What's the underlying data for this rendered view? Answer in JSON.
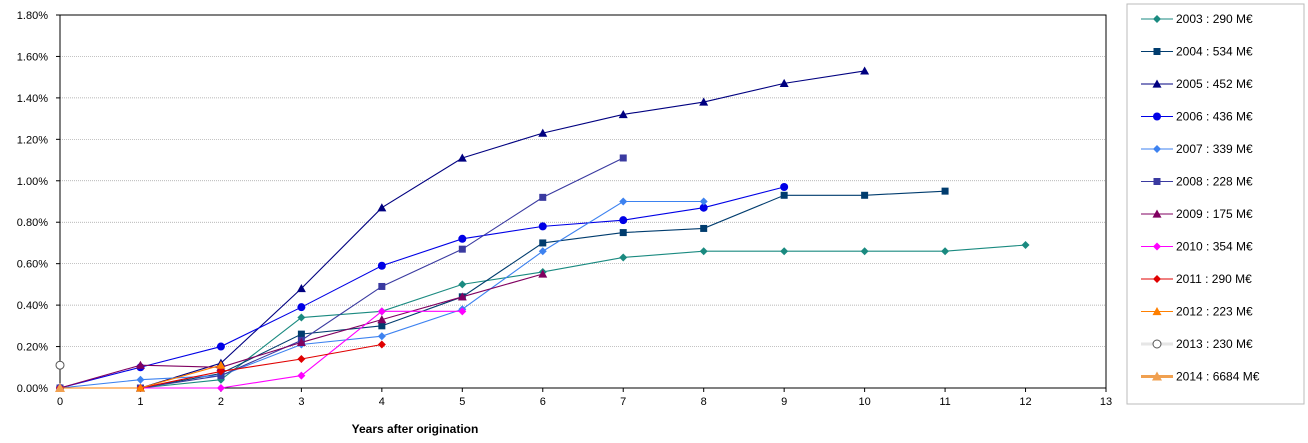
{
  "chart_data": {
    "type": "line",
    "title": "",
    "xlabel": "Years after origination",
    "ylabel": "",
    "xlim": [
      0,
      13
    ],
    "ylim": [
      0,
      0.018
    ],
    "x_ticks": [
      "0",
      "1",
      "2",
      "3",
      "4",
      "5",
      "6",
      "7",
      "8",
      "9",
      "10",
      "11",
      "12",
      "13"
    ],
    "y_ticks": [
      "0.00%",
      "0.20%",
      "0.40%",
      "0.60%",
      "0.80%",
      "1.00%",
      "1.20%",
      "1.40%",
      "1.60%",
      "1.80%"
    ],
    "grid": "horizontal",
    "legend_position": "right",
    "series": [
      {
        "name": "2003 : 290 M€",
        "color": "#1a8a80",
        "marker": "diamond",
        "x": [
          0,
          1,
          2,
          3,
          4,
          5,
          6,
          7,
          8,
          9,
          10,
          11,
          12
        ],
        "y": [
          0,
          0,
          0.0004,
          0.0034,
          0.0037,
          0.005,
          0.0056,
          0.0063,
          0.0066,
          0.0066,
          0.0066,
          0.0066,
          0.0069
        ]
      },
      {
        "name": "2004 : 534 M€",
        "color": "#003c6e",
        "marker": "square",
        "x": [
          0,
          1,
          2,
          3,
          4,
          5,
          6,
          7,
          8,
          9,
          10,
          11
        ],
        "y": [
          0,
          0,
          0.0007,
          0.0026,
          0.003,
          0.0044,
          0.007,
          0.0075,
          0.0077,
          0.0093,
          0.0093,
          0.0095
        ]
      },
      {
        "name": "2005 : 452 M€",
        "color": "#000080",
        "marker": "triangle",
        "x": [
          0,
          1,
          2,
          3,
          4,
          5,
          6,
          7,
          8,
          9,
          10
        ],
        "y": [
          0,
          0,
          0.0012,
          0.0048,
          0.0087,
          0.0111,
          0.0123,
          0.0132,
          0.0138,
          0.0147,
          0.0153
        ]
      },
      {
        "name": "2006 : 436 M€",
        "color": "#0000e6",
        "marker": "circle",
        "x": [
          0,
          1,
          2,
          3,
          4,
          5,
          6,
          7,
          8,
          9
        ],
        "y": [
          0,
          0.001,
          0.002,
          0.0039,
          0.0059,
          0.0072,
          0.0078,
          0.0081,
          0.0087,
          0.0097
        ]
      },
      {
        "name": "2007 : 339 M€",
        "color": "#3d82f0",
        "marker": "diamond",
        "x": [
          0,
          1,
          2,
          3,
          4,
          5,
          6,
          7,
          8
        ],
        "y": [
          0,
          0.0004,
          0.0006,
          0.0021,
          0.0025,
          0.0038,
          0.0066,
          0.009,
          0.009
        ]
      },
      {
        "name": "2008 : 228 M€",
        "color": "#3a3aa0",
        "marker": "square",
        "x": [
          0,
          1,
          2,
          3,
          4,
          5,
          6,
          7
        ],
        "y": [
          0,
          0,
          0.0006,
          0.0023,
          0.0049,
          0.0067,
          0.0092,
          0.0111
        ]
      },
      {
        "name": "2009 : 175 M€",
        "color": "#800060",
        "marker": "triangle",
        "x": [
          0,
          1,
          2,
          3,
          4,
          5,
          6
        ],
        "y": [
          0,
          0.0011,
          0.001,
          0.0022,
          0.0033,
          0.0044,
          0.0055
        ]
      },
      {
        "name": "2010 : 354 M€",
        "color": "#ff00ff",
        "marker": "diamond",
        "x": [
          0,
          1,
          2,
          3,
          4,
          5
        ],
        "y": [
          0,
          0,
          0,
          0.0006,
          0.0037,
          0.0037
        ]
      },
      {
        "name": "2011 : 290 M€",
        "color": "#e00000",
        "marker": "diamond",
        "x": [
          0,
          1,
          2,
          3,
          4
        ],
        "y": [
          0,
          0,
          0.0008,
          0.0014,
          0.0021
        ]
      },
      {
        "name": "2012 : 223 M€",
        "color": "#ff7f00",
        "marker": "triangle",
        "x": [
          0,
          1,
          2
        ],
        "y": [
          0,
          0,
          0.0011
        ]
      },
      {
        "name": "2013 : 230 M€",
        "color": "#c8c8c8",
        "marker": "hollow-circle",
        "x": [
          0
        ],
        "y": [
          0.0011
        ]
      },
      {
        "name": "2014 : 6684 M€",
        "color": "#f0a050",
        "marker": "triangle-thick",
        "x": [
          0
        ],
        "y": [
          0
        ]
      }
    ]
  }
}
